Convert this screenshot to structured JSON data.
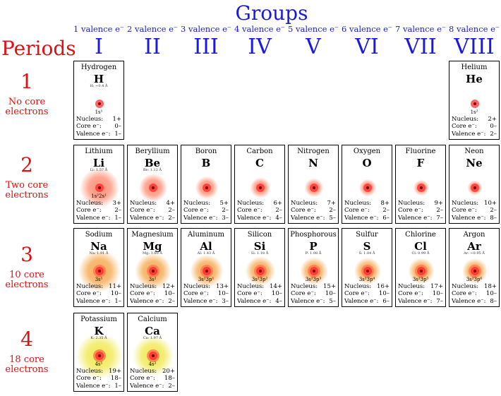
{
  "header": {
    "groups_title": "Groups",
    "periods_title": "Periods"
  },
  "groups": [
    {
      "valence": "1 valence e⁻",
      "roman": "I"
    },
    {
      "valence": "2 valence e⁻",
      "roman": "II"
    },
    {
      "valence": "3 valence e⁻",
      "roman": "III"
    },
    {
      "valence": "4 valence e⁻",
      "roman": "IV"
    },
    {
      "valence": "5 valence e⁻",
      "roman": "V"
    },
    {
      "valence": "6 valence e⁻",
      "roman": "VI"
    },
    {
      "valence": "7 valence e⁻",
      "roman": "VII"
    },
    {
      "valence": "8 valence e⁻",
      "roman": "VIII"
    }
  ],
  "periods": [
    {
      "number": "1",
      "note": "No core electrons"
    },
    {
      "number": "2",
      "note": "Two core electrons"
    },
    {
      "number": "3",
      "note": "10 core electrons"
    },
    {
      "number": "4",
      "note": "18 core electrons"
    }
  ],
  "labels": {
    "nucleus": "Nucleus:",
    "core": "Core e⁻:",
    "valence": "Valence e⁻:"
  },
  "colors": {
    "groups": "#1a1adc",
    "periods": "#e01010",
    "nucleus": "#ff2020",
    "shell_p2": "#ff8a70",
    "shell_p3": "#f5a64a",
    "shell_p4": "#f0e84a"
  },
  "elements": [
    {
      "name": "Hydrogen",
      "symbol": "H",
      "period": 1,
      "group": 1,
      "radius_label": "H: ~0.4 Å",
      "config": "1s¹",
      "nucleus": "1+",
      "core": "0–",
      "valence": "1–",
      "size": 0.12
    },
    {
      "name": "Helium",
      "symbol": "He",
      "period": 1,
      "group": 8,
      "radius_label": "",
      "config": "1s²",
      "nucleus": "2+",
      "core": "0–",
      "valence": "2–",
      "size": 0.1
    },
    {
      "name": "Lithium",
      "symbol": "Li",
      "period": 2,
      "group": 1,
      "radius_label": "Li: 1.57 Å",
      "config": "1s²2s¹",
      "nucleus": "3+",
      "core": "2–",
      "valence": "1–",
      "size": 1.0
    },
    {
      "name": "Beryllium",
      "symbol": "Be",
      "period": 2,
      "group": 2,
      "radius_label": "Be: 1.12 Å",
      "config": "",
      "nucleus": "4+",
      "core": "2–",
      "valence": "2–",
      "size": 0.72
    },
    {
      "name": "Boron",
      "symbol": "B",
      "period": 2,
      "group": 3,
      "radius_label": "",
      "config": "",
      "nucleus": "5+",
      "core": "2–",
      "valence": "3–",
      "size": 0.58
    },
    {
      "name": "Carbon",
      "symbol": "C",
      "period": 2,
      "group": 4,
      "radius_label": "",
      "config": "",
      "nucleus": "6+",
      "core": "2–",
      "valence": "4–",
      "size": 0.52
    },
    {
      "name": "Nitrogen",
      "symbol": "N",
      "period": 2,
      "group": 5,
      "radius_label": "",
      "config": "",
      "nucleus": "7+",
      "core": "2–",
      "valence": "5–",
      "size": 0.48
    },
    {
      "name": "Oxygen",
      "symbol": "O",
      "period": 2,
      "group": 6,
      "radius_label": "",
      "config": "",
      "nucleus": "8+",
      "core": "2–",
      "valence": "6–",
      "size": 0.44
    },
    {
      "name": "Fluorine",
      "symbol": "F",
      "period": 2,
      "group": 7,
      "radius_label": "",
      "config": "",
      "nucleus": "9+",
      "core": "2–",
      "valence": "7–",
      "size": 0.4
    },
    {
      "name": "Neon",
      "symbol": "Ne",
      "period": 2,
      "group": 8,
      "radius_label": "",
      "config": "",
      "nucleus": "10+",
      "core": "2–",
      "valence": "8–",
      "size": 0.38
    },
    {
      "name": "Sodium",
      "symbol": "Na",
      "period": 3,
      "group": 1,
      "radius_label": "Na: 1.91 Å",
      "config": "3s¹",
      "nucleus": "11+",
      "core": "10–",
      "valence": "1–",
      "size": 1.0
    },
    {
      "name": "Magnesium",
      "symbol": "Mg",
      "period": 3,
      "group": 2,
      "radius_label": "Mg: 1.60 Å",
      "config": "3s²",
      "nucleus": "12+",
      "core": "10–",
      "valence": "2–",
      "size": 0.86
    },
    {
      "name": "Aluminum",
      "symbol": "Al",
      "period": 3,
      "group": 3,
      "radius_label": "Al: 1.43 Å",
      "config": "3s²3p¹",
      "nucleus": "13+",
      "core": "10–",
      "valence": "3–",
      "size": 0.78
    },
    {
      "name": "Silicon",
      "symbol": "Si",
      "period": 3,
      "group": 4,
      "radius_label": "Si: 1.18 Å",
      "config": "3s²3p²",
      "nucleus": "14+",
      "core": "10–",
      "valence": "4–",
      "size": 0.7
    },
    {
      "name": "Phosphorous",
      "symbol": "P",
      "period": 3,
      "group": 5,
      "radius_label": "P: 1.08 Å",
      "config": "3s²3p³",
      "nucleus": "15+",
      "core": "10–",
      "valence": "5–",
      "size": 0.66
    },
    {
      "name": "Sulfur",
      "symbol": "S",
      "period": 3,
      "group": 6,
      "radius_label": "S: 1.04 Å",
      "config": "3s²3p⁴",
      "nucleus": "16+",
      "core": "10–",
      "valence": "6–",
      "size": 0.64
    },
    {
      "name": "Chlorine",
      "symbol": "Cl",
      "period": 3,
      "group": 7,
      "radius_label": "Cl: 0.99 Å",
      "config": "3s²3p⁵",
      "nucleus": "17+",
      "core": "10–",
      "valence": "7–",
      "size": 0.62
    },
    {
      "name": "Argon",
      "symbol": "Ar",
      "period": 3,
      "group": 8,
      "radius_label": "Ar: ~0.95 Å",
      "config": "3s²3p⁶",
      "nucleus": "18+",
      "core": "10–",
      "valence": "8–",
      "size": 0.6
    },
    {
      "name": "Potassium",
      "symbol": "K",
      "period": 4,
      "group": 1,
      "radius_label": "K: 2.35 Å",
      "config": "4s¹",
      "nucleus": "19+",
      "core": "18–",
      "valence": "1–",
      "size": 1.0
    },
    {
      "name": "Calcium",
      "symbol": "Ca",
      "period": 4,
      "group": 2,
      "radius_label": "Ca: 1.97 Å",
      "config": "4s²",
      "nucleus": "20+",
      "core": "18–",
      "valence": "2–",
      "size": 0.88
    }
  ]
}
